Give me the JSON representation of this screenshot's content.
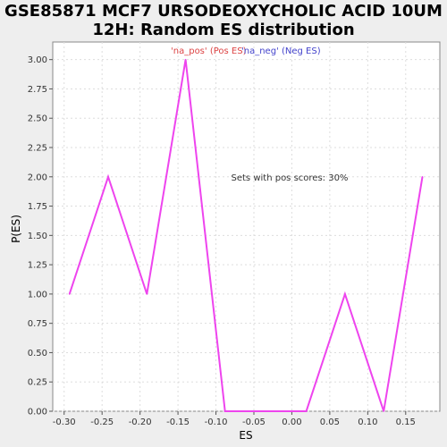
{
  "chart_data": {
    "type": "line",
    "title": [
      "GSE85871 MCF7 URSODEOXYCHOLIC ACID 10UM",
      "12H: Random ES distribution"
    ],
    "xlabel": "ES",
    "ylabel": "P(ES)",
    "xlim": [
      -0.315,
      0.195
    ],
    "ylim": [
      0,
      3.15
    ],
    "xticks": [
      -0.3,
      -0.25,
      -0.2,
      -0.15,
      -0.1,
      -0.05,
      0.0,
      0.05,
      0.1,
      0.15
    ],
    "xtick_labels": [
      "-0.30",
      "-0.25",
      "-0.20",
      "-0.15",
      "-0.10",
      "-0.05",
      "0.00",
      "0.05",
      "0.10",
      "0.15"
    ],
    "yticks": [
      0,
      0.25,
      0.5,
      0.75,
      1.0,
      1.25,
      1.5,
      1.75,
      2.0,
      2.25,
      2.5,
      2.75,
      3.0
    ],
    "ytick_labels": [
      "0.00",
      "0.25",
      "0.50",
      "0.75",
      "1.00",
      "1.25",
      "1.50",
      "1.75",
      "2.00",
      "2.25",
      "2.50",
      "2.75",
      "3.00"
    ],
    "grid": true,
    "legend_placement": "top-center",
    "series": [
      {
        "name": "'na_pos' (Pos ES)",
        "color": "#dd4444",
        "x": [],
        "y": []
      },
      {
        "name": "'na_neg' (Neg ES)",
        "color": "#4444cc",
        "x": [],
        "y": []
      },
      {
        "name": "",
        "color": "#ee44ee",
        "x": [
          -0.293,
          -0.242,
          -0.191,
          -0.14,
          -0.088,
          -0.037,
          0.019,
          0.07,
          0.121,
          0.172
        ],
        "y": [
          1.0,
          2.0,
          1.0,
          3.0,
          0.0,
          0.0,
          0.0,
          1.0,
          0.0,
          2.0
        ]
      }
    ],
    "annotations": [
      {
        "text": "Sets with pos scores: 30%",
        "x": -0.08,
        "y": 2.0
      }
    ]
  }
}
